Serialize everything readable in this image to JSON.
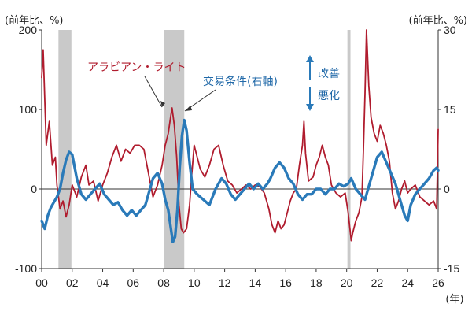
{
  "chart_data": {
    "type": "line",
    "x_tick_labels": [
      "00",
      "02",
      "04",
      "06",
      "08",
      "10",
      "12",
      "14",
      "16",
      "18",
      "20",
      "22",
      "24",
      "26"
    ],
    "x_unit": "(年)",
    "x_range": [
      2000,
      2026
    ],
    "y_left": {
      "unit": "(前年比、%)",
      "range": [
        -100,
        200
      ],
      "ticks": [
        -100,
        0,
        100,
        200
      ]
    },
    "y_right": {
      "unit": "(前年比、%)",
      "range": [
        -15,
        30
      ],
      "ticks": [
        -15,
        0,
        15,
        30
      ]
    },
    "shaded_periods": [
      [
        2001.1,
        2001.95
      ],
      [
        2008.0,
        2009.35
      ],
      [
        2020.05,
        2020.25
      ]
    ],
    "annotations": {
      "arabian_light": "アラビアン・ライト",
      "terms_of_trade": "交易条件(右軸)",
      "improve": "改善",
      "worsen": "悪化"
    },
    "colors": {
      "arabian_light": "#b01c2e",
      "terms_of_trade": "#2a7ab9",
      "shade": "#c9c9c9",
      "text": "#222222",
      "arrow": "#2a7ab9"
    },
    "series": [
      {
        "name": "アラビアン・ライト",
        "axis": "left",
        "points": [
          [
            2000.0,
            140
          ],
          [
            2000.1,
            175
          ],
          [
            2000.3,
            55
          ],
          [
            2000.5,
            85
          ],
          [
            2000.7,
            30
          ],
          [
            2000.9,
            40
          ],
          [
            2001.0,
            5
          ],
          [
            2001.2,
            -25
          ],
          [
            2001.4,
            -15
          ],
          [
            2001.6,
            -35
          ],
          [
            2001.8,
            -20
          ],
          [
            2002.0,
            5
          ],
          [
            2002.3,
            -10
          ],
          [
            2002.6,
            15
          ],
          [
            2002.9,
            30
          ],
          [
            2003.1,
            5
          ],
          [
            2003.4,
            10
          ],
          [
            2003.7,
            -15
          ],
          [
            2004.0,
            5
          ],
          [
            2004.3,
            20
          ],
          [
            2004.6,
            40
          ],
          [
            2004.9,
            55
          ],
          [
            2005.2,
            35
          ],
          [
            2005.5,
            50
          ],
          [
            2005.8,
            45
          ],
          [
            2006.1,
            55
          ],
          [
            2006.4,
            55
          ],
          [
            2006.7,
            50
          ],
          [
            2006.9,
            30
          ],
          [
            2007.1,
            10
          ],
          [
            2007.3,
            -10
          ],
          [
            2007.6,
            5
          ],
          [
            2007.9,
            30
          ],
          [
            2008.1,
            55
          ],
          [
            2008.3,
            70
          ],
          [
            2008.45,
            90
          ],
          [
            2008.55,
            102
          ],
          [
            2008.7,
            80
          ],
          [
            2008.85,
            40
          ],
          [
            2009.0,
            -20
          ],
          [
            2009.15,
            -50
          ],
          [
            2009.3,
            -55
          ],
          [
            2009.5,
            -50
          ],
          [
            2009.7,
            -20
          ],
          [
            2009.85,
            20
          ],
          [
            2010.0,
            55
          ],
          [
            2010.2,
            40
          ],
          [
            2010.4,
            25
          ],
          [
            2010.7,
            15
          ],
          [
            2011.0,
            30
          ],
          [
            2011.3,
            50
          ],
          [
            2011.6,
            55
          ],
          [
            2011.9,
            30
          ],
          [
            2012.2,
            10
          ],
          [
            2012.5,
            5
          ],
          [
            2012.8,
            -5
          ],
          [
            2013.1,
            0
          ],
          [
            2013.4,
            5
          ],
          [
            2013.7,
            0
          ],
          [
            2014.0,
            5
          ],
          [
            2014.3,
            3
          ],
          [
            2014.6,
            -5
          ],
          [
            2014.9,
            -25
          ],
          [
            2015.1,
            -45
          ],
          [
            2015.3,
            -55
          ],
          [
            2015.5,
            -40
          ],
          [
            2015.7,
            -50
          ],
          [
            2015.9,
            -45
          ],
          [
            2016.1,
            -30
          ],
          [
            2016.3,
            -15
          ],
          [
            2016.5,
            -5
          ],
          [
            2016.7,
            0
          ],
          [
            2016.9,
            30
          ],
          [
            2017.1,
            55
          ],
          [
            2017.2,
            85
          ],
          [
            2017.3,
            45
          ],
          [
            2017.5,
            10
          ],
          [
            2017.8,
            15
          ],
          [
            2018.0,
            30
          ],
          [
            2018.2,
            40
          ],
          [
            2018.4,
            55
          ],
          [
            2018.6,
            40
          ],
          [
            2018.8,
            30
          ],
          [
            2019.0,
            5
          ],
          [
            2019.3,
            -5
          ],
          [
            2019.6,
            -10
          ],
          [
            2019.9,
            -5
          ],
          [
            2020.1,
            -30
          ],
          [
            2020.3,
            -65
          ],
          [
            2020.4,
            -55
          ],
          [
            2020.6,
            -40
          ],
          [
            2020.8,
            -30
          ],
          [
            2021.0,
            -10
          ],
          [
            2021.1,
            50
          ],
          [
            2021.2,
            120
          ],
          [
            2021.3,
            200
          ],
          [
            2021.45,
            130
          ],
          [
            2021.6,
            90
          ],
          [
            2021.8,
            70
          ],
          [
            2022.0,
            60
          ],
          [
            2022.2,
            80
          ],
          [
            2022.4,
            70
          ],
          [
            2022.6,
            55
          ],
          [
            2022.8,
            35
          ],
          [
            2023.0,
            -5
          ],
          [
            2023.2,
            -25
          ],
          [
            2023.4,
            -15
          ],
          [
            2023.6,
            0
          ],
          [
            2023.8,
            10
          ],
          [
            2024.0,
            -5
          ],
          [
            2024.2,
            0
          ],
          [
            2024.5,
            5
          ],
          [
            2024.8,
            -10
          ],
          [
            2025.1,
            -15
          ],
          [
            2025.4,
            -20
          ],
          [
            2025.7,
            -15
          ],
          [
            2025.9,
            -25
          ],
          [
            2026.0,
            75
          ]
        ]
      },
      {
        "name": "交易条件(右軸)",
        "axis": "right",
        "points": [
          [
            2000.0,
            -6
          ],
          [
            2000.2,
            -7.5
          ],
          [
            2000.4,
            -5
          ],
          [
            2000.6,
            -3.5
          ],
          [
            2000.8,
            -2.5
          ],
          [
            2001.0,
            -1.5
          ],
          [
            2001.2,
            0
          ],
          [
            2001.4,
            3
          ],
          [
            2001.6,
            5.5
          ],
          [
            2001.8,
            7
          ],
          [
            2002.0,
            6.5
          ],
          [
            2002.3,
            2
          ],
          [
            2002.6,
            -1
          ],
          [
            2002.9,
            -2
          ],
          [
            2003.2,
            -1
          ],
          [
            2003.5,
            0
          ],
          [
            2003.8,
            1
          ],
          [
            2004.1,
            -1
          ],
          [
            2004.4,
            -2
          ],
          [
            2004.7,
            -3
          ],
          [
            2005.0,
            -2.5
          ],
          [
            2005.3,
            -4
          ],
          [
            2005.6,
            -5
          ],
          [
            2005.9,
            -4
          ],
          [
            2006.2,
            -5
          ],
          [
            2006.5,
            -4
          ],
          [
            2006.8,
            -3
          ],
          [
            2007.0,
            -1
          ],
          [
            2007.3,
            2
          ],
          [
            2007.6,
            3
          ],
          [
            2007.9,
            1
          ],
          [
            2008.1,
            -2
          ],
          [
            2008.3,
            -4
          ],
          [
            2008.45,
            -7
          ],
          [
            2008.6,
            -10
          ],
          [
            2008.75,
            -9
          ],
          [
            2008.9,
            -4
          ],
          [
            2009.05,
            4
          ],
          [
            2009.2,
            10
          ],
          [
            2009.35,
            13
          ],
          [
            2009.5,
            11
          ],
          [
            2009.7,
            5
          ],
          [
            2009.9,
            0
          ],
          [
            2010.2,
            -1
          ],
          [
            2010.6,
            -2
          ],
          [
            2011.0,
            -3
          ],
          [
            2011.4,
            0
          ],
          [
            2011.8,
            2
          ],
          [
            2012.1,
            1
          ],
          [
            2012.4,
            -1
          ],
          [
            2012.7,
            -2
          ],
          [
            2013.0,
            -1
          ],
          [
            2013.3,
            0
          ],
          [
            2013.6,
            1
          ],
          [
            2013.9,
            0
          ],
          [
            2014.2,
            1
          ],
          [
            2014.5,
            0
          ],
          [
            2014.8,
            1
          ],
          [
            2015.0,
            2
          ],
          [
            2015.3,
            4
          ],
          [
            2015.6,
            5
          ],
          [
            2015.9,
            4
          ],
          [
            2016.2,
            2
          ],
          [
            2016.5,
            1
          ],
          [
            2016.8,
            -1
          ],
          [
            2017.1,
            -2
          ],
          [
            2017.4,
            -1
          ],
          [
            2017.7,
            -1
          ],
          [
            2018.0,
            0
          ],
          [
            2018.3,
            0
          ],
          [
            2018.6,
            -1
          ],
          [
            2018.9,
            0
          ],
          [
            2019.2,
            0
          ],
          [
            2019.5,
            1
          ],
          [
            2019.8,
            0.5
          ],
          [
            2020.1,
            1
          ],
          [
            2020.3,
            2
          ],
          [
            2020.6,
            0
          ],
          [
            2020.9,
            -1
          ],
          [
            2021.2,
            -2
          ],
          [
            2021.5,
            1
          ],
          [
            2021.8,
            4
          ],
          [
            2022.0,
            6
          ],
          [
            2022.3,
            7
          ],
          [
            2022.6,
            5
          ],
          [
            2022.9,
            3
          ],
          [
            2023.2,
            1
          ],
          [
            2023.5,
            -2
          ],
          [
            2023.8,
            -5
          ],
          [
            2024.0,
            -6
          ],
          [
            2024.2,
            -3
          ],
          [
            2024.5,
            -1
          ],
          [
            2024.8,
            0
          ],
          [
            2025.1,
            1
          ],
          [
            2025.4,
            2
          ],
          [
            2025.7,
            3.5
          ],
          [
            2025.9,
            4
          ],
          [
            2026.0,
            3.5
          ]
        ]
      }
    ]
  }
}
